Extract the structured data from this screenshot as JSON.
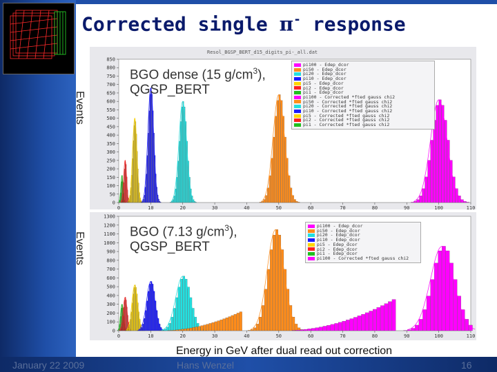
{
  "slide": {
    "title_prefix": "Corrected single ",
    "title_symbol": "π",
    "title_superscript": "-",
    "title_suffix": " response",
    "xlabel": "Energy in GeV after dual read out correction",
    "footer_date": "January 22 2009",
    "footer_author": "Hans Wenzel",
    "footer_page": "16",
    "ylabel": "Events"
  },
  "colors": {
    "sidebar": "#1f4fa8",
    "title": "#0a1a6b",
    "panel_bg": "#e8e8ec"
  },
  "chart_data": [
    {
      "type": "bar",
      "histogram_title": "Resol_BGSP_BERT_d15_digits_pi-_all.dat",
      "annotation_line1": "BGO dense (15 g/cm",
      "annotation_sup": "3",
      "annotation_line1_end": "),",
      "annotation_line2": "QGSP_BERT",
      "xlim": [
        0,
        110
      ],
      "ylim": [
        0,
        850
      ],
      "xticks": [
        "0",
        "10",
        "20",
        "30",
        "40",
        "50",
        "60",
        "70",
        "80",
        "90",
        "100",
        "110"
      ],
      "yticks": [
        "0",
        "50",
        "100",
        "150",
        "200",
        "250",
        "300",
        "350",
        "400",
        "450",
        "500",
        "550",
        "600",
        "650",
        "700",
        "750",
        "800",
        "850"
      ],
      "legend_position": "top-right",
      "legend": [
        {
          "label": "pi100 - Edep_dcor",
          "color": "#ff00ff"
        },
        {
          "label": "pi50 - Edep_dcor",
          "color": "#ff8c1a"
        },
        {
          "label": "pi20 - Edep_dcor",
          "color": "#22e0e0"
        },
        {
          "label": "pi10 - Edep_dcor",
          "color": "#1a1aff"
        },
        {
          "label": "pi5 - Edep_dcor",
          "color": "#ffd700"
        },
        {
          "label": "pi2 - Edep_dcor",
          "color": "#ff2020"
        },
        {
          "label": "pi1 - Edep_dcor",
          "color": "#20c020"
        },
        {
          "label": "pi100 - Corrected *fted gauss chi2",
          "color": "#ff00ff"
        },
        {
          "label": "pi50 - Corrected *fted gauss chi2",
          "color": "#ff8c1a"
        },
        {
          "label": "pi20 - Corrected *fted gauss chi2",
          "color": "#22e0e0"
        },
        {
          "label": "pi10 - Corrected *fted gauss chi2",
          "color": "#1a1aff"
        },
        {
          "label": "pi5 - Corrected *fted gauss chi2",
          "color": "#ffd700"
        },
        {
          "label": "pi2 - Corrected *fted gauss chi2",
          "color": "#ff2020"
        },
        {
          "label": "pi1 - Corrected *fted gauss chi2",
          "color": "#20c020"
        }
      ],
      "series": [
        {
          "name": "pi1",
          "color": "#20c020",
          "mean": 1.0,
          "sigma": 0.35,
          "peak": 160,
          "tail": 0
        },
        {
          "name": "pi2",
          "color": "#ff2020",
          "mean": 2.0,
          "sigma": 0.45,
          "peak": 250,
          "tail": 0
        },
        {
          "name": "pi5",
          "color": "#ffd700",
          "mean": 5.0,
          "sigma": 0.7,
          "peak": 500,
          "tail": 0
        },
        {
          "name": "pi10",
          "color": "#1a1aff",
          "mean": 10.0,
          "sigma": 0.9,
          "peak": 680,
          "tail": 0
        },
        {
          "name": "pi20",
          "color": "#22e0e0",
          "mean": 20.0,
          "sigma": 1.2,
          "peak": 600,
          "tail": 0
        },
        {
          "name": "pi50",
          "color": "#ff8c1a",
          "mean": 50.0,
          "sigma": 1.8,
          "peak": 640,
          "tail": 0
        },
        {
          "name": "pi100",
          "color": "#ff00ff",
          "mean": 100.0,
          "sigma": 2.6,
          "peak": 610,
          "tail": 0
        }
      ]
    },
    {
      "type": "bar",
      "histogram_title": "",
      "annotation_line1": "BGO  (7.13 g/cm",
      "annotation_sup": "3",
      "annotation_line1_end": "),",
      "annotation_line2": "QGSP_BERT",
      "xlim": [
        0,
        110
      ],
      "ylim": [
        0,
        1300
      ],
      "xticks": [
        "0",
        "10",
        "20",
        "30",
        "40",
        "50",
        "60",
        "70",
        "80",
        "90",
        "100",
        "110"
      ],
      "yticks": [
        "0",
        "100",
        "200",
        "300",
        "400",
        "500",
        "600",
        "700",
        "800",
        "900",
        "1000",
        "1100",
        "1200",
        "1300"
      ],
      "legend_position": "top-right",
      "legend": [
        {
          "label": "pi100 - Edep_dcor",
          "color": "#ff00ff"
        },
        {
          "label": "pi50 - Edep_dcor",
          "color": "#ff8c1a"
        },
        {
          "label": "pi20 - Edep_dcor",
          "color": "#22e0e0"
        },
        {
          "label": "pi10 - Edep_dcor",
          "color": "#1a1aff"
        },
        {
          "label": "pi5 - Edep_dcor",
          "color": "#ffd700"
        },
        {
          "label": "pi2 - Edep_dcor",
          "color": "#ff2020"
        },
        {
          "label": "pi1 - Edep_dcor",
          "color": "#20c020"
        },
        {
          "label": "pi100 - Corrected *fted gauss chi2",
          "color": "#ff00ff"
        }
      ],
      "series": [
        {
          "name": "pi1",
          "color": "#20c020",
          "mean": 1.0,
          "sigma": 0.45,
          "peak": 300,
          "tail": 0
        },
        {
          "name": "pi2",
          "color": "#ff2020",
          "mean": 2.0,
          "sigma": 0.6,
          "peak": 380,
          "tail": 0
        },
        {
          "name": "pi5",
          "color": "#ffd700",
          "mean": 5.0,
          "sigma": 0.9,
          "peak": 520,
          "tail": 0
        },
        {
          "name": "pi10",
          "color": "#1a1aff",
          "mean": 10.0,
          "sigma": 1.3,
          "peak": 560,
          "tail": 0
        },
        {
          "name": "pi20",
          "color": "#22e0e0",
          "mean": 20.0,
          "sigma": 2.2,
          "peak": 620,
          "tail": 0
        },
        {
          "name": "pi50",
          "color": "#ff8c1a",
          "mean": 49.0,
          "sigma": 2.6,
          "peak": 1150,
          "tail": 230
        },
        {
          "name": "pi100",
          "color": "#ff00ff",
          "mean": 101.0,
          "sigma": 3.6,
          "peak": 960,
          "tail": 380
        }
      ]
    }
  ]
}
